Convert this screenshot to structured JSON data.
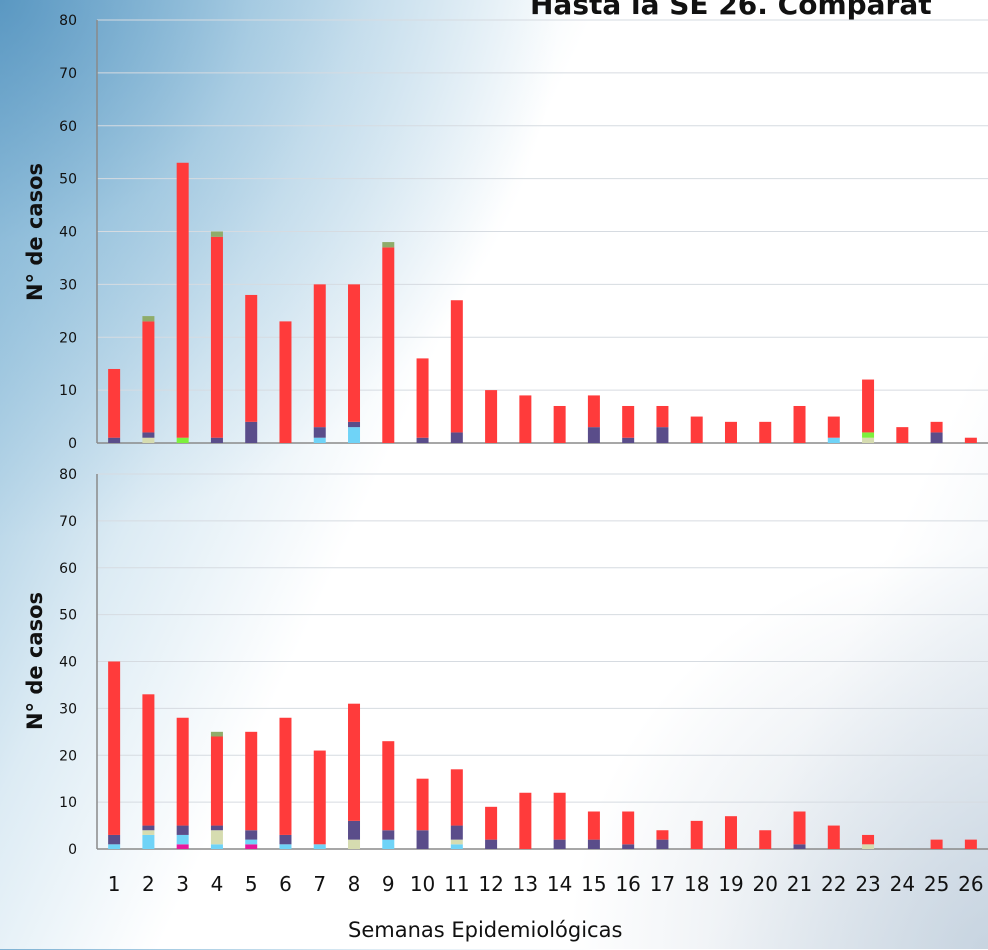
{
  "title": "Hasta la SE 26. Comparat",
  "colors": {
    "red": "#ff3b3b",
    "navy": "#5a4d8a",
    "cyan": "#6fd3f7",
    "beige": "#d6dcb0",
    "lime": "#7cf03c",
    "olive": "#8fac6a",
    "magenta": "#e6199c",
    "grid": "#d6dbe1",
    "axis": "#8a8a8a"
  },
  "chart_data": [
    {
      "type": "bar",
      "stacked": true,
      "ylabel": "N° de casos",
      "xlabel": "",
      "ylim": [
        0,
        80
      ],
      "yticks": [
        0,
        10,
        20,
        30,
        40,
        50,
        60,
        70,
        80
      ],
      "grid": true,
      "categories": [
        "1",
        "2",
        "3",
        "4",
        "5",
        "6",
        "7",
        "8",
        "9",
        "10",
        "11",
        "12",
        "13",
        "14",
        "15",
        "16",
        "17",
        "18",
        "19",
        "20",
        "21",
        "22",
        "23",
        "24",
        "25",
        "26"
      ],
      "series": [
        {
          "color": "beige",
          "values": [
            0,
            1,
            0,
            0,
            0,
            0,
            0,
            0,
            0,
            0,
            0,
            0,
            0,
            0,
            0,
            0,
            0,
            0,
            0,
            0,
            0,
            0,
            1,
            0,
            0,
            0
          ]
        },
        {
          "color": "lime",
          "values": [
            0,
            0,
            1,
            0,
            0,
            0,
            0,
            0,
            0,
            0,
            0,
            0,
            0,
            0,
            0,
            0,
            0,
            0,
            0,
            0,
            0,
            0,
            1,
            0,
            0,
            0
          ]
        },
        {
          "color": "cyan",
          "values": [
            0,
            0,
            0,
            0,
            0,
            0,
            1,
            3,
            0,
            0,
            0,
            0,
            0,
            0,
            0,
            0,
            0,
            0,
            0,
            0,
            0,
            1,
            0,
            0,
            0,
            0
          ]
        },
        {
          "color": "navy",
          "values": [
            1,
            1,
            0,
            1,
            4,
            0,
            2,
            1,
            0,
            1,
            2,
            0,
            0,
            0,
            3,
            1,
            3,
            0,
            0,
            0,
            0,
            0,
            0,
            0,
            2,
            0
          ]
        },
        {
          "color": "red",
          "values": [
            13,
            21,
            52,
            38,
            24,
            23,
            27,
            26,
            37,
            15,
            25,
            10,
            9,
            7,
            6,
            6,
            4,
            5,
            4,
            4,
            7,
            4,
            10,
            3,
            2,
            1
          ]
        },
        {
          "color": "olive",
          "values": [
            0,
            1,
            0,
            1,
            0,
            0,
            0,
            0,
            1,
            0,
            0,
            0,
            0,
            0,
            0,
            0,
            0,
            0,
            0,
            0,
            0,
            0,
            0,
            0,
            0,
            0
          ]
        }
      ]
    },
    {
      "type": "bar",
      "stacked": true,
      "ylabel": "N° de casos",
      "xlabel": "Semanas Epidemiológicas",
      "ylim": [
        0,
        80
      ],
      "yticks": [
        0,
        10,
        20,
        30,
        40,
        50,
        60,
        70,
        80
      ],
      "grid": true,
      "categories": [
        "1",
        "2",
        "3",
        "4",
        "5",
        "6",
        "7",
        "8",
        "9",
        "10",
        "11",
        "12",
        "13",
        "14",
        "15",
        "16",
        "17",
        "18",
        "19",
        "20",
        "21",
        "22",
        "23",
        "24",
        "25",
        "26"
      ],
      "series": [
        {
          "color": "magenta",
          "values": [
            0,
            0,
            1,
            0,
            1,
            0,
            0,
            0,
            0,
            0,
            0,
            0,
            0,
            0,
            0,
            0,
            0,
            0,
            0,
            0,
            0,
            0,
            0,
            0,
            0,
            0
          ]
        },
        {
          "color": "cyan",
          "values": [
            1,
            3,
            2,
            1,
            1,
            1,
            1,
            0,
            2,
            0,
            1,
            0,
            0,
            0,
            0,
            0,
            0,
            0,
            0,
            0,
            0,
            0,
            0,
            0,
            0,
            0
          ]
        },
        {
          "color": "beige",
          "values": [
            0,
            1,
            0,
            3,
            0,
            0,
            0,
            2,
            0,
            0,
            1,
            0,
            0,
            0,
            0,
            0,
            0,
            0,
            0,
            0,
            0,
            0,
            1,
            0,
            0,
            0
          ]
        },
        {
          "color": "navy",
          "values": [
            2,
            1,
            2,
            1,
            2,
            2,
            0,
            4,
            2,
            4,
            3,
            2,
            0,
            2,
            2,
            1,
            2,
            0,
            0,
            0,
            1,
            0,
            0,
            0,
            0,
            0
          ]
        },
        {
          "color": "red",
          "values": [
            37,
            28,
            23,
            19,
            21,
            25,
            20,
            25,
            19,
            11,
            12,
            7,
            12,
            10,
            6,
            7,
            2,
            6,
            7,
            4,
            7,
            5,
            2,
            0,
            2,
            2
          ]
        },
        {
          "color": "olive",
          "values": [
            0,
            0,
            0,
            1,
            0,
            0,
            0,
            0,
            0,
            0,
            0,
            0,
            0,
            0,
            0,
            0,
            0,
            0,
            0,
            0,
            0,
            0,
            0,
            0,
            0,
            0
          ]
        }
      ]
    }
  ]
}
